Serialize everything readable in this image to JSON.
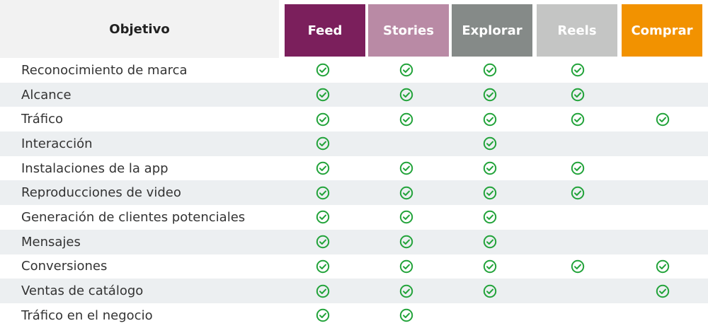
{
  "header": {
    "objective_label": "Objetivo",
    "columns": [
      {
        "label": "Feed",
        "color": "#7b1f5c"
      },
      {
        "label": "Stories",
        "color": "#b98aa5"
      },
      {
        "label": "Explorar",
        "color": "#858a88"
      },
      {
        "label": "Reels",
        "color": "#c4c5c4"
      },
      {
        "label": "Comprar",
        "color": "#f29200"
      }
    ]
  },
  "check_color": "#22a33a",
  "check_icon": "check-circle-icon",
  "rows": [
    {
      "label": "Reconocimiento de marca",
      "checks": [
        true,
        true,
        true,
        true,
        false
      ]
    },
    {
      "label": "Alcance",
      "checks": [
        true,
        true,
        true,
        true,
        false
      ]
    },
    {
      "label": "Tráfico",
      "checks": [
        true,
        true,
        true,
        true,
        true
      ]
    },
    {
      "label": "Interacción",
      "checks": [
        true,
        false,
        true,
        false,
        false
      ]
    },
    {
      "label": "Instalaciones de la app",
      "checks": [
        true,
        true,
        true,
        true,
        false
      ]
    },
    {
      "label": "Reproducciones de video",
      "checks": [
        true,
        true,
        true,
        true,
        false
      ]
    },
    {
      "label": "Generación de clientes potenciales",
      "checks": [
        true,
        true,
        true,
        false,
        false
      ]
    },
    {
      "label": "Mensajes",
      "checks": [
        true,
        true,
        true,
        false,
        false
      ]
    },
    {
      "label": "Conversiones",
      "checks": [
        true,
        true,
        true,
        true,
        true
      ]
    },
    {
      "label": "Ventas de catálogo",
      "checks": [
        true,
        true,
        true,
        false,
        true
      ]
    },
    {
      "label": "Tráfico en el negocio",
      "checks": [
        true,
        true,
        false,
        false,
        false
      ]
    }
  ]
}
